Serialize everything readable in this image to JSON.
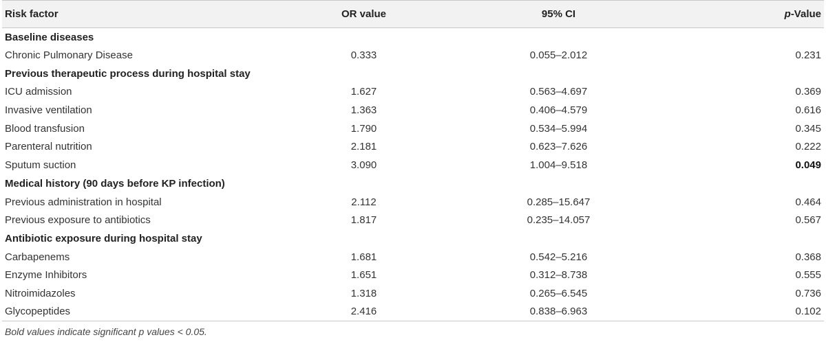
{
  "table": {
    "headers": {
      "risk_factor": "Risk factor",
      "or_value": "OR value",
      "ci": "95% CI",
      "p_italic": "p",
      "p_rest": "-Value"
    },
    "rows": [
      {
        "type": "section",
        "label": "Baseline diseases"
      },
      {
        "type": "data",
        "label": "Chronic Pulmonary Disease",
        "or": "0.333",
        "ci": "0.055–2.012",
        "p": "0.231",
        "significant": false
      },
      {
        "type": "section",
        "label": "Previous therapeutic process during hospital stay"
      },
      {
        "type": "data",
        "label": "ICU admission",
        "or": "1.627",
        "ci": "0.563–4.697",
        "p": "0.369",
        "significant": false
      },
      {
        "type": "data",
        "label": "Invasive ventilation",
        "or": "1.363",
        "ci": "0.406–4.579",
        "p": "0.616",
        "significant": false
      },
      {
        "type": "data",
        "label": "Blood transfusion",
        "or": "1.790",
        "ci": "0.534–5.994",
        "p": "0.345",
        "significant": false
      },
      {
        "type": "data",
        "label": "Parenteral nutrition",
        "or": "2.181",
        "ci": "0.623–7.626",
        "p": "0.222",
        "significant": false
      },
      {
        "type": "data",
        "label": "Sputum suction",
        "or": "3.090",
        "ci": "1.004–9.518",
        "p": "0.049",
        "significant": true
      },
      {
        "type": "section",
        "label": "Medical history (90 days before KP infection)"
      },
      {
        "type": "data",
        "label": "Previous administration in hospital",
        "or": "2.112",
        "ci": "0.285–15.647",
        "p": "0.464",
        "significant": false
      },
      {
        "type": "data",
        "label": "Previous exposure to antibiotics",
        "or": "1.817",
        "ci": "0.235–14.057",
        "p": "0.567",
        "significant": false
      },
      {
        "type": "section",
        "label": "Antibiotic exposure during hospital stay"
      },
      {
        "type": "data",
        "label": "Carbapenems",
        "or": "1.681",
        "ci": "0.542–5.216",
        "p": "0.368",
        "significant": false
      },
      {
        "type": "data",
        "label": "Enzyme Inhibitors",
        "or": "1.651",
        "ci": "0.312–8.738",
        "p": "0.555",
        "significant": false
      },
      {
        "type": "data",
        "label": "Nitroimidazoles",
        "or": "1.318",
        "ci": "0.265–6.545",
        "p": "0.736",
        "significant": false
      },
      {
        "type": "data",
        "label": "Glycopeptides",
        "or": "2.416",
        "ci": "0.838–6.963",
        "p": "0.102",
        "significant": false
      }
    ]
  },
  "footnote": "Bold values indicate significant p values < 0.05."
}
